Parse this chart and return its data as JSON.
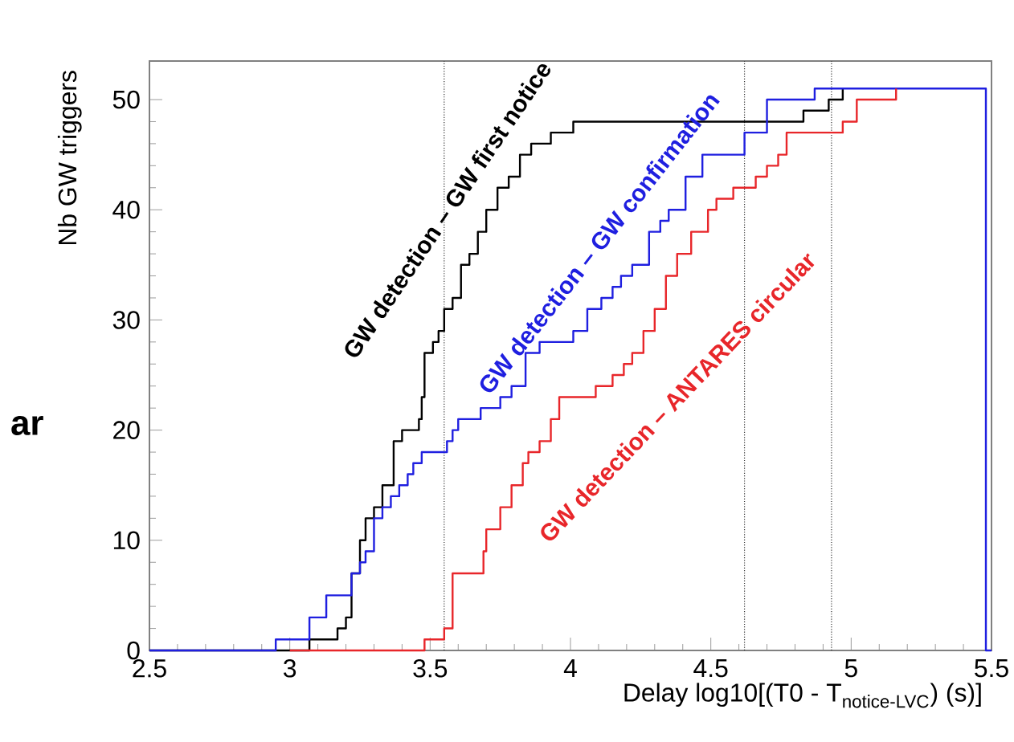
{
  "chart_data": {
    "type": "step",
    "xlabel": "\\text{Delay log10[(T0 - T}_{\\text{notice-LVC}}\\text{) (s)]}",
    "ylabel": "Nb GW triggers",
    "annotations": [
      "ar"
    ],
    "xlim": [
      2.5,
      5.5
    ],
    "ylim": [
      0,
      53.5
    ],
    "xticks": [
      2.5,
      3,
      3.5,
      4,
      4.5,
      5,
      5.5
    ],
    "yticks": [
      0,
      10,
      20,
      30,
      40,
      50
    ],
    "grid": false,
    "marker": "none",
    "line_style": "solid",
    "ref_lines": [
      {
        "axis": "x",
        "value": 3.55,
        "line_style": "dotted",
        "color": "#333333"
      },
      {
        "axis": "x",
        "value": 4.62,
        "line_style": "dotted",
        "color": "#333333"
      },
      {
        "axis": "x",
        "value": 4.93,
        "line_style": "dotted",
        "color": "#333333"
      }
    ],
    "series": [
      {
        "name": "GW detection – GW first notice",
        "color": "#000000",
        "x": [
          2.5,
          3.07,
          3.17,
          3.2,
          3.22,
          3.25,
          3.27,
          3.3,
          3.33,
          3.37,
          3.4,
          3.46,
          3.47,
          3.48,
          3.51,
          3.53,
          3.55,
          3.58,
          3.61,
          3.64,
          3.67,
          3.7,
          3.74,
          3.78,
          3.82,
          3.86,
          3.93,
          4.01,
          4.83,
          4.92,
          4.97
        ],
        "values": [
          0,
          1,
          2,
          3,
          7,
          10,
          12,
          13,
          15,
          19,
          20,
          21,
          23,
          27,
          28,
          29,
          31,
          32,
          35,
          36,
          38,
          40,
          42,
          43,
          45,
          46,
          47,
          48,
          49,
          50,
          51
        ]
      },
      {
        "name": "GW detection – GW confirmation",
        "color": "#1f1fe0",
        "x": [
          2.5,
          2.95,
          3.07,
          3.13,
          3.22,
          3.25,
          3.27,
          3.3,
          3.33,
          3.36,
          3.39,
          3.42,
          3.44,
          3.47,
          3.56,
          3.58,
          3.6,
          3.68,
          3.75,
          3.79,
          3.84,
          3.89,
          4.01,
          4.06,
          4.11,
          4.15,
          4.18,
          4.22,
          4.28,
          4.32,
          4.35,
          4.41,
          4.47,
          4.62,
          4.7,
          4.87,
          5.48,
          5.5
        ],
        "values": [
          0,
          1,
          3,
          5,
          7,
          8,
          9,
          12,
          13,
          14,
          15,
          16,
          17,
          18,
          19,
          20,
          21,
          22,
          23,
          24,
          27,
          28,
          29,
          31,
          32,
          33,
          34,
          35,
          38,
          39,
          40,
          43,
          45,
          47,
          50,
          51,
          0,
          0
        ]
      },
      {
        "name": "GW detection – ANTARES circular",
        "color": "#e8262a",
        "x": [
          3.0,
          3.48,
          3.55,
          3.58,
          3.69,
          3.7,
          3.75,
          3.79,
          3.83,
          3.85,
          3.89,
          3.93,
          3.96,
          4.09,
          4.15,
          4.19,
          4.22,
          4.26,
          4.3,
          4.34,
          4.38,
          4.43,
          4.49,
          4.52,
          4.58,
          4.66,
          4.7,
          4.74,
          4.77,
          4.97,
          5.02,
          5.16
        ],
        "values": [
          0,
          1,
          2,
          7,
          9,
          11,
          13,
          15,
          17,
          18,
          19,
          21,
          23,
          24,
          25,
          26,
          27,
          29,
          31,
          34,
          36,
          38,
          40,
          41,
          42,
          43,
          44,
          45,
          47,
          48,
          50,
          51
        ]
      }
    ]
  }
}
